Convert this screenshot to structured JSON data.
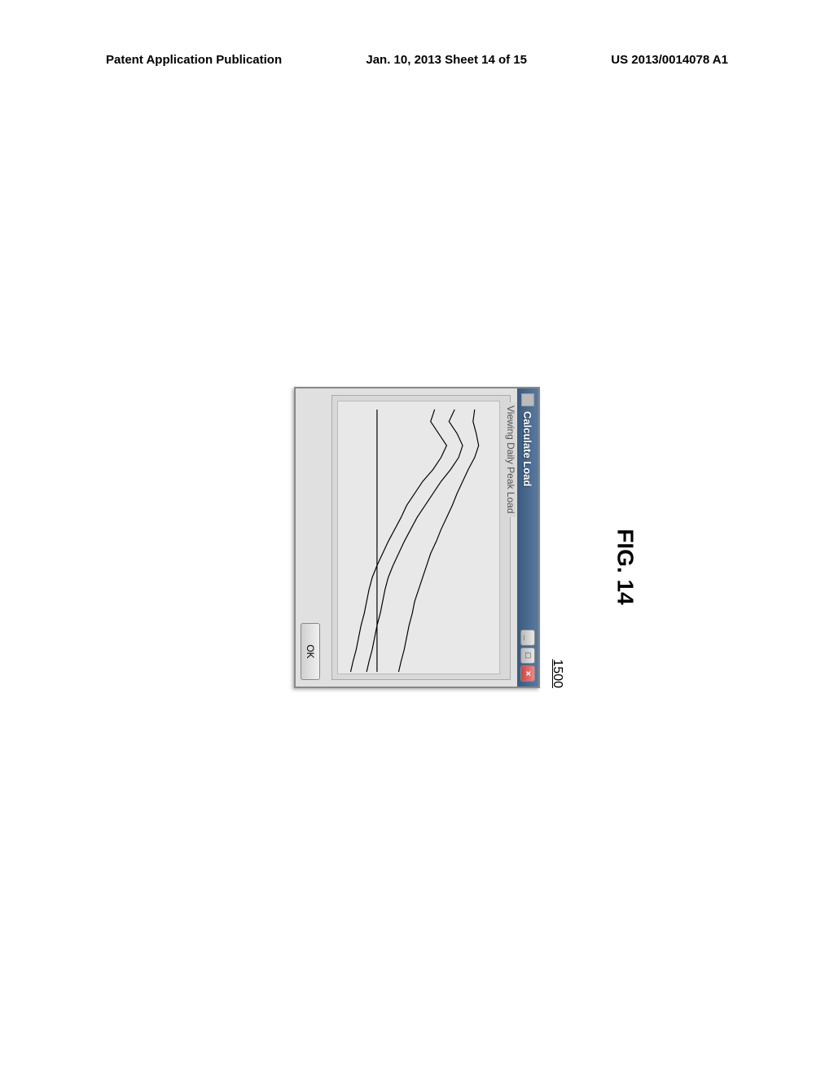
{
  "header": {
    "left": "Patent Application Publication",
    "center": "Jan. 10, 2013  Sheet 14 of 15",
    "right": "US 2013/0014078 A1"
  },
  "reference_number": "1500",
  "dialog": {
    "title": "Calculate Load",
    "groupbox_label": "Viewing Daily Peak Load",
    "ok_label": "OK"
  },
  "chart": {
    "type": "line",
    "background_color": "#e8e8e8",
    "line_color": "#000000",
    "line_width": 1.2,
    "xlim": [
      0,
      340
    ],
    "ylim": [
      0,
      200
    ],
    "series": [
      {
        "name": "line1",
        "points": [
          [
            10,
            120
          ],
          [
            25,
            115
          ],
          [
            40,
            125
          ],
          [
            55,
            135
          ],
          [
            70,
            128
          ],
          [
            85,
            118
          ],
          [
            100,
            105
          ],
          [
            115,
            95
          ],
          [
            130,
            85
          ],
          [
            145,
            78
          ],
          [
            160,
            70
          ],
          [
            175,
            62
          ],
          [
            190,
            55
          ],
          [
            205,
            48
          ],
          [
            220,
            42
          ],
          [
            235,
            38
          ],
          [
            250,
            35
          ],
          [
            265,
            32
          ],
          [
            280,
            28
          ],
          [
            295,
            25
          ],
          [
            310,
            22
          ],
          [
            325,
            18
          ],
          [
            338,
            15
          ]
        ]
      },
      {
        "name": "line2",
        "points": [
          [
            10,
            145
          ],
          [
            25,
            138
          ],
          [
            40,
            148
          ],
          [
            55,
            155
          ],
          [
            70,
            150
          ],
          [
            85,
            140
          ],
          [
            100,
            128
          ],
          [
            115,
            118
          ],
          [
            130,
            108
          ],
          [
            145,
            98
          ],
          [
            160,
            90
          ],
          [
            175,
            82
          ],
          [
            190,
            75
          ],
          [
            205,
            68
          ],
          [
            220,
            62
          ],
          [
            235,
            58
          ],
          [
            250,
            55
          ],
          [
            265,
            52
          ],
          [
            280,
            48
          ],
          [
            295,
            45
          ],
          [
            310,
            42
          ],
          [
            325,
            38
          ],
          [
            338,
            35
          ]
        ]
      },
      {
        "name": "line3",
        "points": [
          [
            10,
            170
          ],
          [
            25,
            168
          ],
          [
            40,
            172
          ],
          [
            55,
            175
          ],
          [
            70,
            170
          ],
          [
            85,
            162
          ],
          [
            100,
            155
          ],
          [
            115,
            148
          ],
          [
            130,
            142
          ],
          [
            145,
            135
          ],
          [
            160,
            128
          ],
          [
            175,
            122
          ],
          [
            190,
            115
          ],
          [
            205,
            110
          ],
          [
            220,
            105
          ],
          [
            235,
            100
          ],
          [
            250,
            95
          ],
          [
            265,
            92
          ],
          [
            280,
            88
          ],
          [
            295,
            85
          ],
          [
            310,
            82
          ],
          [
            325,
            78
          ],
          [
            338,
            75
          ]
        ]
      },
      {
        "name": "line4_flat",
        "points": [
          [
            10,
            48
          ],
          [
            50,
            48
          ],
          [
            100,
            48
          ],
          [
            150,
            48
          ],
          [
            200,
            48
          ],
          [
            250,
            48
          ],
          [
            300,
            48
          ],
          [
            338,
            48
          ]
        ]
      }
    ]
  },
  "figure_caption": "FIG. 14"
}
